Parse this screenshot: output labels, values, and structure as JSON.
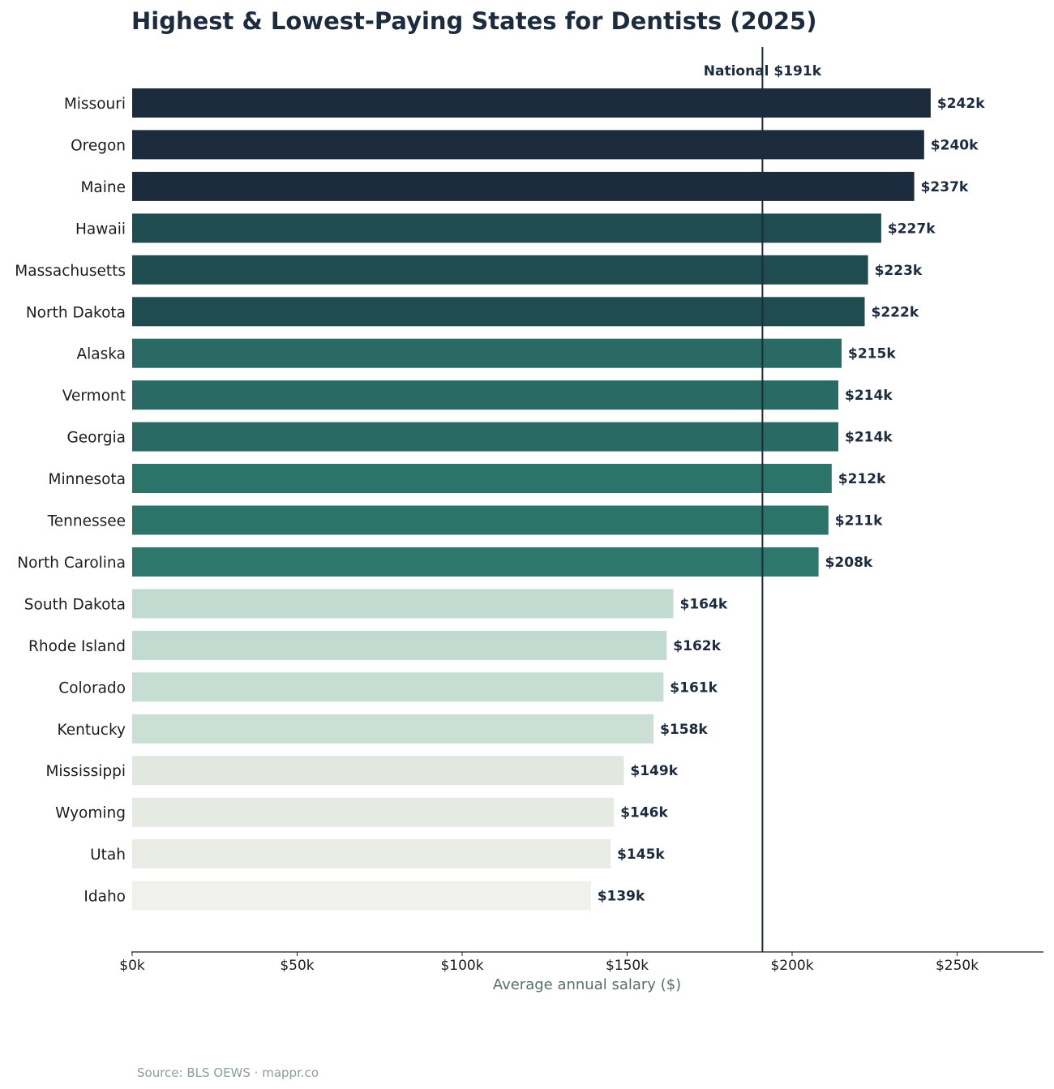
{
  "chart_data": {
    "type": "bar",
    "orientation": "horizontal",
    "title": "Highest & Lowest-Paying States for Dentists (2025)",
    "xlabel": "Average annual salary ($)",
    "ylabel": "",
    "xlim": [
      0,
      275000
    ],
    "x_ticks": [
      0,
      50000,
      100000,
      150000,
      200000,
      250000
    ],
    "x_tick_labels": [
      "$0k",
      "$50k",
      "$100k",
      "$150k",
      "$200k",
      "$250k"
    ],
    "reference_line": {
      "value": 191000,
      "label": "National $191k",
      "color": "#1c2b3e"
    },
    "categories": [
      "Missouri",
      "Oregon",
      "Maine",
      "Hawaii",
      "Massachusetts",
      "North Dakota",
      "Alaska",
      "Vermont",
      "Georgia",
      "Minnesota",
      "Tennessee",
      "North Carolina",
      "South Dakota",
      "Rhode Island",
      "Colorado",
      "Kentucky",
      "Mississippi",
      "Wyoming",
      "Utah",
      "Idaho"
    ],
    "values": [
      242000,
      240000,
      237000,
      227000,
      223000,
      222000,
      215000,
      214000,
      214000,
      212000,
      211000,
      208000,
      164000,
      162000,
      161000,
      158000,
      149000,
      146000,
      145000,
      139000
    ],
    "value_labels": [
      "$242k",
      "$240k",
      "$237k",
      "$227k",
      "$223k",
      "$222k",
      "$215k",
      "$214k",
      "$214k",
      "$212k",
      "$211k",
      "$208k",
      "$164k",
      "$162k",
      "$161k",
      "$158k",
      "$149k",
      "$146k",
      "$145k",
      "$139k"
    ],
    "colors": [
      "#1c2b3e",
      "#1c2b3e",
      "#1c2b3e",
      "#1f4d4f",
      "#1f4d4f",
      "#1f4d4f",
      "#2a6a64",
      "#2a6a64",
      "#2a6a64",
      "#2c7369",
      "#2c7369",
      "#2e776c",
      "#c2dbd1",
      "#c2dbd1",
      "#c6ddd3",
      "#cbdfd5",
      "#e2e8e0",
      "#e5eae2",
      "#e8ece5",
      "#f0f1ec"
    ],
    "grid": false,
    "legend": "none"
  },
  "footer": {
    "source": "Source: BLS OEWS · mappr.co"
  }
}
